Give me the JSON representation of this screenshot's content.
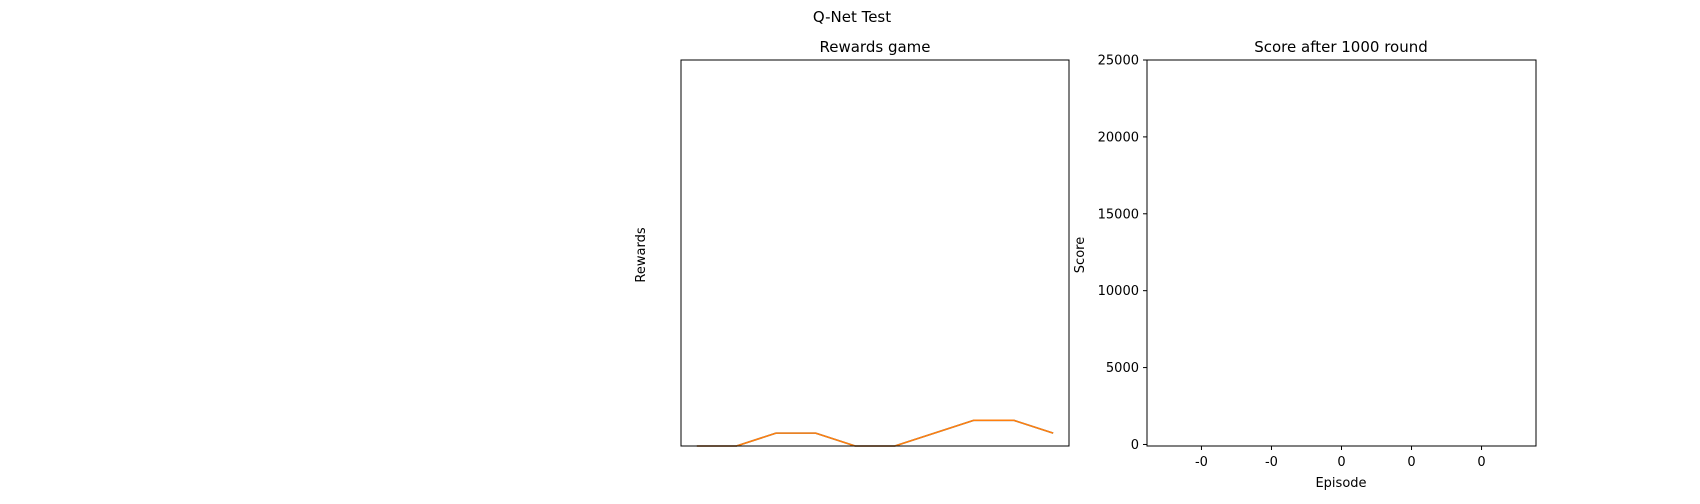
{
  "figure": {
    "title": "Q-Net Test"
  },
  "chart_data": [
    {
      "type": "line",
      "title": "Rewards game",
      "xlabel": "",
      "ylabel": "Rewards",
      "x_ticks_visible": false,
      "y_ticks_visible": false,
      "series": [
        {
          "color": "#1f77b4",
          "x": [
            0,
            1,
            2,
            3,
            4,
            5,
            6,
            7,
            8,
            9
          ],
          "y": [
            0,
            0,
            1,
            1,
            0,
            0,
            1,
            2,
            2,
            1
          ]
        },
        {
          "color": "#ff7f0e",
          "x": [
            0,
            1,
            2,
            3,
            4,
            5,
            6,
            7,
            8,
            9
          ],
          "y": [
            0,
            0,
            1,
            1,
            0,
            0,
            1,
            2,
            2,
            1
          ]
        }
      ],
      "xlim": [
        -0.4,
        9.4
      ],
      "ylim": [
        0,
        30
      ],
      "grid": false
    },
    {
      "type": "scatter",
      "title": "Score after 1000 round",
      "xlabel": "Episode",
      "ylabel": "Score",
      "yticks": [
        0,
        5000,
        10000,
        15000,
        20000,
        25000
      ],
      "ytick_labels": [
        "0",
        "5000",
        "10000",
        "15000",
        "20000",
        "25000"
      ],
      "xtick_labels": [
        "-0",
        "-0",
        "0",
        "0",
        "0"
      ],
      "ylim": [
        -100,
        25000
      ],
      "points": [],
      "grid": false
    }
  ]
}
